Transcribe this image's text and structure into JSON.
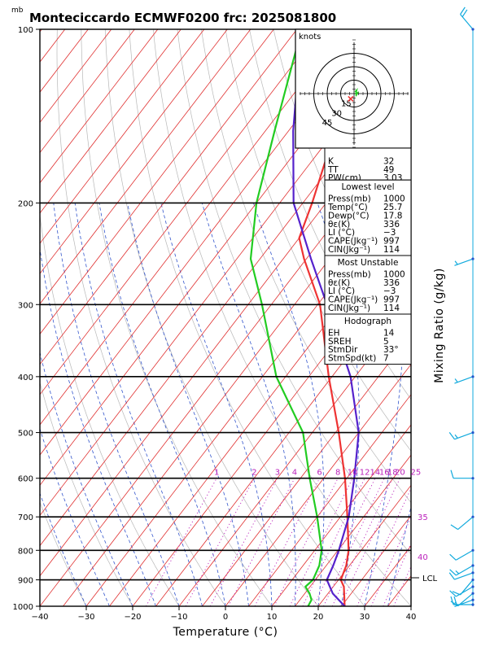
{
  "title": "Monteciccardo ECMWF0200  frc: 2025081800",
  "pressure_unit": "mb",
  "hodograph": {
    "units_label": "knots",
    "ring_labels": [
      "15",
      "30",
      "45"
    ],
    "ring_speeds": [
      15,
      30,
      45
    ]
  },
  "lcl_label": "LCL",
  "mixing_ratio_label": "Mixing Ratio  (g/kg)",
  "colors": {
    "isotherm": "#e03030",
    "temperature": "#ee3333",
    "dewpoint": "#22cc22",
    "parcel": "#5522cc",
    "moist_adiabat": "#3355cc",
    "mixing_ratio": "#bb22bb",
    "wind": "#11aadd"
  },
  "indices": [
    {
      "label": "K",
      "value": "32"
    },
    {
      "label": "TT",
      "value": "49"
    },
    {
      "label": "PW(cm)",
      "value": "3.03"
    }
  ],
  "sections": [
    {
      "header": "Lowest level",
      "rows": [
        {
          "label": "Press(mb)",
          "value": "1000"
        },
        {
          "label": "Temp(°C)",
          "value": "25.7"
        },
        {
          "label": "Dewp(°C)",
          "value": "17.8"
        },
        {
          "label": "θε(K)",
          "value": "336"
        },
        {
          "label": "LI (°C)",
          "value": "−3"
        },
        {
          "label": "CAPE(Jkg⁻¹)",
          "value": "997"
        },
        {
          "label": "CIN(Jkg⁻¹)",
          "value": "114"
        }
      ]
    },
    {
      "header": "Most Unstable",
      "rows": [
        {
          "label": "Press(mb)",
          "value": "1000"
        },
        {
          "label": "θε(K)",
          "value": "336"
        },
        {
          "label": "LI (°C)",
          "value": "−3"
        },
        {
          "label": "CAPE(Jkg⁻¹)",
          "value": "997"
        },
        {
          "label": "CIN(Jkg⁻¹)",
          "value": "114"
        }
      ]
    },
    {
      "header": "Hodograph",
      "rows": [
        {
          "label": "EH",
          "value": "14"
        },
        {
          "label": "SREH",
          "value": "5"
        },
        {
          "label": "StmDir",
          "value": "33°"
        },
        {
          "label": "StmSpd(kt)",
          "value": "7"
        }
      ]
    }
  ],
  "chart_data": {
    "type": "line",
    "title": "Monteciccardo ECMWF0200  frc: 2025081800",
    "xlabel": "Temperature (°C)",
    "ylabel": "mb",
    "xlim": [
      -40,
      40
    ],
    "ylim": [
      1000,
      100
    ],
    "y_scale": "log",
    "x_ticks": [
      "−40",
      "−30",
      "−20",
      "−10",
      "0",
      "10",
      "20",
      "30",
      "40"
    ],
    "x_tick_values": [
      -40,
      -30,
      -20,
      -10,
      0,
      10,
      20,
      30,
      40
    ],
    "y_ticks": [
      "100",
      "200",
      "300",
      "400",
      "500",
      "600",
      "700",
      "800",
      "900",
      "1000"
    ],
    "y_tick_values": [
      100,
      200,
      300,
      400,
      500,
      600,
      700,
      800,
      900,
      1000
    ],
    "mixing_ratio_ticks": [
      "1",
      "2",
      "3",
      "4",
      "6",
      "8",
      "10",
      "12",
      "14",
      "16",
      "18",
      "20",
      "25",
      "30",
      "35",
      "40"
    ],
    "mixing_ratio_values": [
      1,
      2,
      3,
      4,
      6,
      8,
      10,
      12,
      14,
      16,
      18,
      20,
      25,
      30,
      35,
      40
    ],
    "series": [
      {
        "key": "temperature",
        "pressure": [
          1000,
          925,
          900,
          850,
          800,
          700,
          600,
          500,
          400,
          300,
          250,
          230,
          200,
          150,
          100
        ],
        "values": [
          25.7,
          22.3,
          20.5,
          19.3,
          17.3,
          11.5,
          4.6,
          -4.3,
          -15.7,
          -29.5,
          -40.5,
          -45.0,
          -48.0,
          -55.0,
          -64.0
        ]
      },
      {
        "key": "dewpoint",
        "pressure": [
          1000,
          975,
          950,
          925,
          900,
          850,
          800,
          700,
          600,
          500,
          400,
          300,
          250,
          200,
          150,
          100
        ],
        "values": [
          17.8,
          17.5,
          16.0,
          14.0,
          14.5,
          13.5,
          11.5,
          5.0,
          -3.0,
          -12.0,
          -27.0,
          -42.0,
          -52.0,
          -60.0,
          -68.0,
          -79.0
        ]
      },
      {
        "key": "parcel",
        "pressure": [
          1000,
          950,
          900,
          850,
          800,
          700,
          600,
          500,
          400,
          300,
          250,
          200,
          150,
          100
        ],
        "values": [
          25.7,
          21.0,
          17.5,
          16.5,
          15.2,
          11.8,
          6.6,
          0.0,
          -11.0,
          -28.0,
          -39.0,
          -52.0,
          -64.0,
          -79.0
        ]
      }
    ],
    "wind_barbs": [
      {
        "pressure": 1000,
        "dir": 270,
        "speed": 20
      },
      {
        "pressure": 975,
        "dir": 250,
        "speed": 5
      },
      {
        "pressure": 950,
        "dir": 230,
        "speed": 10
      },
      {
        "pressure": 925,
        "dir": 240,
        "speed": 10
      },
      {
        "pressure": 900,
        "dir": 220,
        "speed": 10
      },
      {
        "pressure": 875,
        "dir": 250,
        "speed": 10
      },
      {
        "pressure": 850,
        "dir": 240,
        "speed": 15
      },
      {
        "pressure": 800,
        "dir": 240,
        "speed": 10
      },
      {
        "pressure": 700,
        "dir": 230,
        "speed": 10
      },
      {
        "pressure": 600,
        "dir": 270,
        "speed": 10
      },
      {
        "pressure": 500,
        "dir": 250,
        "speed": 15
      },
      {
        "pressure": 400,
        "dir": 250,
        "speed": 5
      },
      {
        "pressure": 250,
        "dir": 250,
        "speed": 5
      },
      {
        "pressure": 100,
        "dir": 320,
        "speed": 20
      }
    ],
    "hodograph_trace": [
      {
        "u": 1,
        "v": 2
      },
      {
        "u": 3,
        "v": 4
      },
      {
        "u": 2,
        "v": 0
      },
      {
        "u": 4,
        "v": 1
      },
      {
        "u": 2,
        "v": -3
      }
    ],
    "storm_motion": {
      "dir": 33,
      "speed": 7
    }
  }
}
